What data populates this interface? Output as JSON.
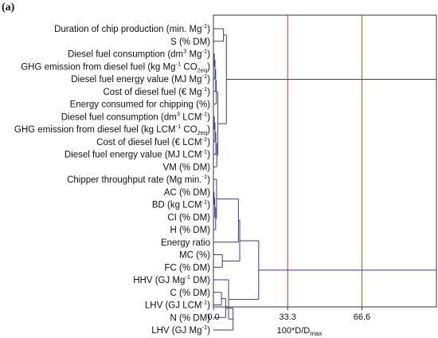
{
  "panel_label": "(a)",
  "chart_data": {
    "type": "dendrogram",
    "xlabel": "100*D/D",
    "xlabel_sub": "max",
    "xlim": [
      0,
      100
    ],
    "xticks": [
      0.0,
      33.3,
      66.6
    ],
    "xtick_labels": [
      "0.0",
      "33.3",
      "66.6"
    ],
    "reference_lines": [
      {
        "x": 33.3,
        "color": "#c0392b"
      },
      {
        "x": 66.6,
        "color": "#8b6914"
      }
    ],
    "branch_color": "#3a3a9a",
    "leaves": [
      {
        "text": "Duration of chip production (min. Mg",
        "sup": "-1",
        "after": ")"
      },
      {
        "text": "S (% DM)"
      },
      {
        "text": "Diesel fuel consumption (dm",
        "sup": "3",
        "mid": " Mg",
        "sup2": "-1",
        "after": ")"
      },
      {
        "text": "GHG emission from diesel fuel (kg Mg",
        "sup": "-1",
        "mid": " CO",
        "sub": "2eq",
        "after": ")"
      },
      {
        "text": "Diesel fuel energy value (MJ Mg",
        "sup": "-1",
        "after": ")"
      },
      {
        "text": "Cost of diesel fuel (€ Mg",
        "sup": "-1",
        "after": ")"
      },
      {
        "text": "Energy consumed for chipping (%)"
      },
      {
        "text": "Diesel fuel consumption (dm",
        "sup": "3",
        "mid": " LCM",
        "sup2": "-1",
        "after": ")"
      },
      {
        "text": "GHG emission from diesel fuel (kg LCM",
        "sup": "-1",
        "mid": " CO",
        "sub": "2eq",
        "after": ")"
      },
      {
        "text": "Cost of diesel fuel (€ LCM",
        "sup": "-1",
        "after": ")"
      },
      {
        "text": "Diesel fuel energy value (MJ LCM",
        "sup": "-1",
        "after": ")"
      },
      {
        "text": "VM (% DM)"
      },
      {
        "text": "Chipper throughput rate (Mg min.",
        "sup": "-1",
        "after": ")"
      },
      {
        "text": "AC (% DM)"
      },
      {
        "text": "BD (kg LCM",
        "sup": "-1",
        "after": ")"
      },
      {
        "text": "CI (% DM)"
      },
      {
        "text": "H (% DM)"
      },
      {
        "text": "Energy ratio"
      },
      {
        "text": "MC (%)"
      },
      {
        "text": "FC (% DM)"
      },
      {
        "text": "HHV (GJ Mg",
        "sup": "-1",
        "after": " DM)"
      },
      {
        "text": "C (% DM)"
      },
      {
        "text": "LHV (GJ LCM",
        "sup": "-1",
        "after": ")"
      },
      {
        "text": "N (% DM)"
      },
      {
        "text": "LHV (GJ Mg",
        "sup": "-1",
        "after": ")"
      }
    ],
    "merges": [
      {
        "a": "L0",
        "b": "L1",
        "d": 4.5
      },
      {
        "a": "L2",
        "b": "L3",
        "d": 0.4
      },
      {
        "a": "M1",
        "b": "L4",
        "d": 0.7
      },
      {
        "a": "M2",
        "b": "L5",
        "d": 1.0
      },
      {
        "a": "M3",
        "b": "L6",
        "d": 1.3
      },
      {
        "a": "L7",
        "b": "L8",
        "d": 0.4
      },
      {
        "a": "M5",
        "b": "L9",
        "d": 0.7
      },
      {
        "a": "M6",
        "b": "L10",
        "d": 1.1
      },
      {
        "a": "M7",
        "b": "L11",
        "d": 1.5
      },
      {
        "a": "M4",
        "b": "M8",
        "d": 2.0
      },
      {
        "a": "M0",
        "b": "M9",
        "d": 5.8
      },
      {
        "a": "L13",
        "b": "L14",
        "d": 0.3
      },
      {
        "a": "M11",
        "b": "L15",
        "d": 0.6
      },
      {
        "a": "M12",
        "b": "L16",
        "d": 1.0
      },
      {
        "a": "L12",
        "b": "M13",
        "d": 1.4
      },
      {
        "a": "M14",
        "b": "L17",
        "d": 11.2
      },
      {
        "a": "L18",
        "b": "L19",
        "d": 4.0
      },
      {
        "a": "M15",
        "b": "M16",
        "d": 11.8
      },
      {
        "a": "L21",
        "b": "L22",
        "d": 3.6
      },
      {
        "a": "M18",
        "b": "L23",
        "d": 5.5
      },
      {
        "a": "M19",
        "b": "L24",
        "d": 8.8
      },
      {
        "a": "L20",
        "b": "M20",
        "d": 6.8
      },
      {
        "a": "M17",
        "b": "M21",
        "d": 20.3
      },
      {
        "a": "M10",
        "b": "M22",
        "d": 100
      }
    ]
  }
}
